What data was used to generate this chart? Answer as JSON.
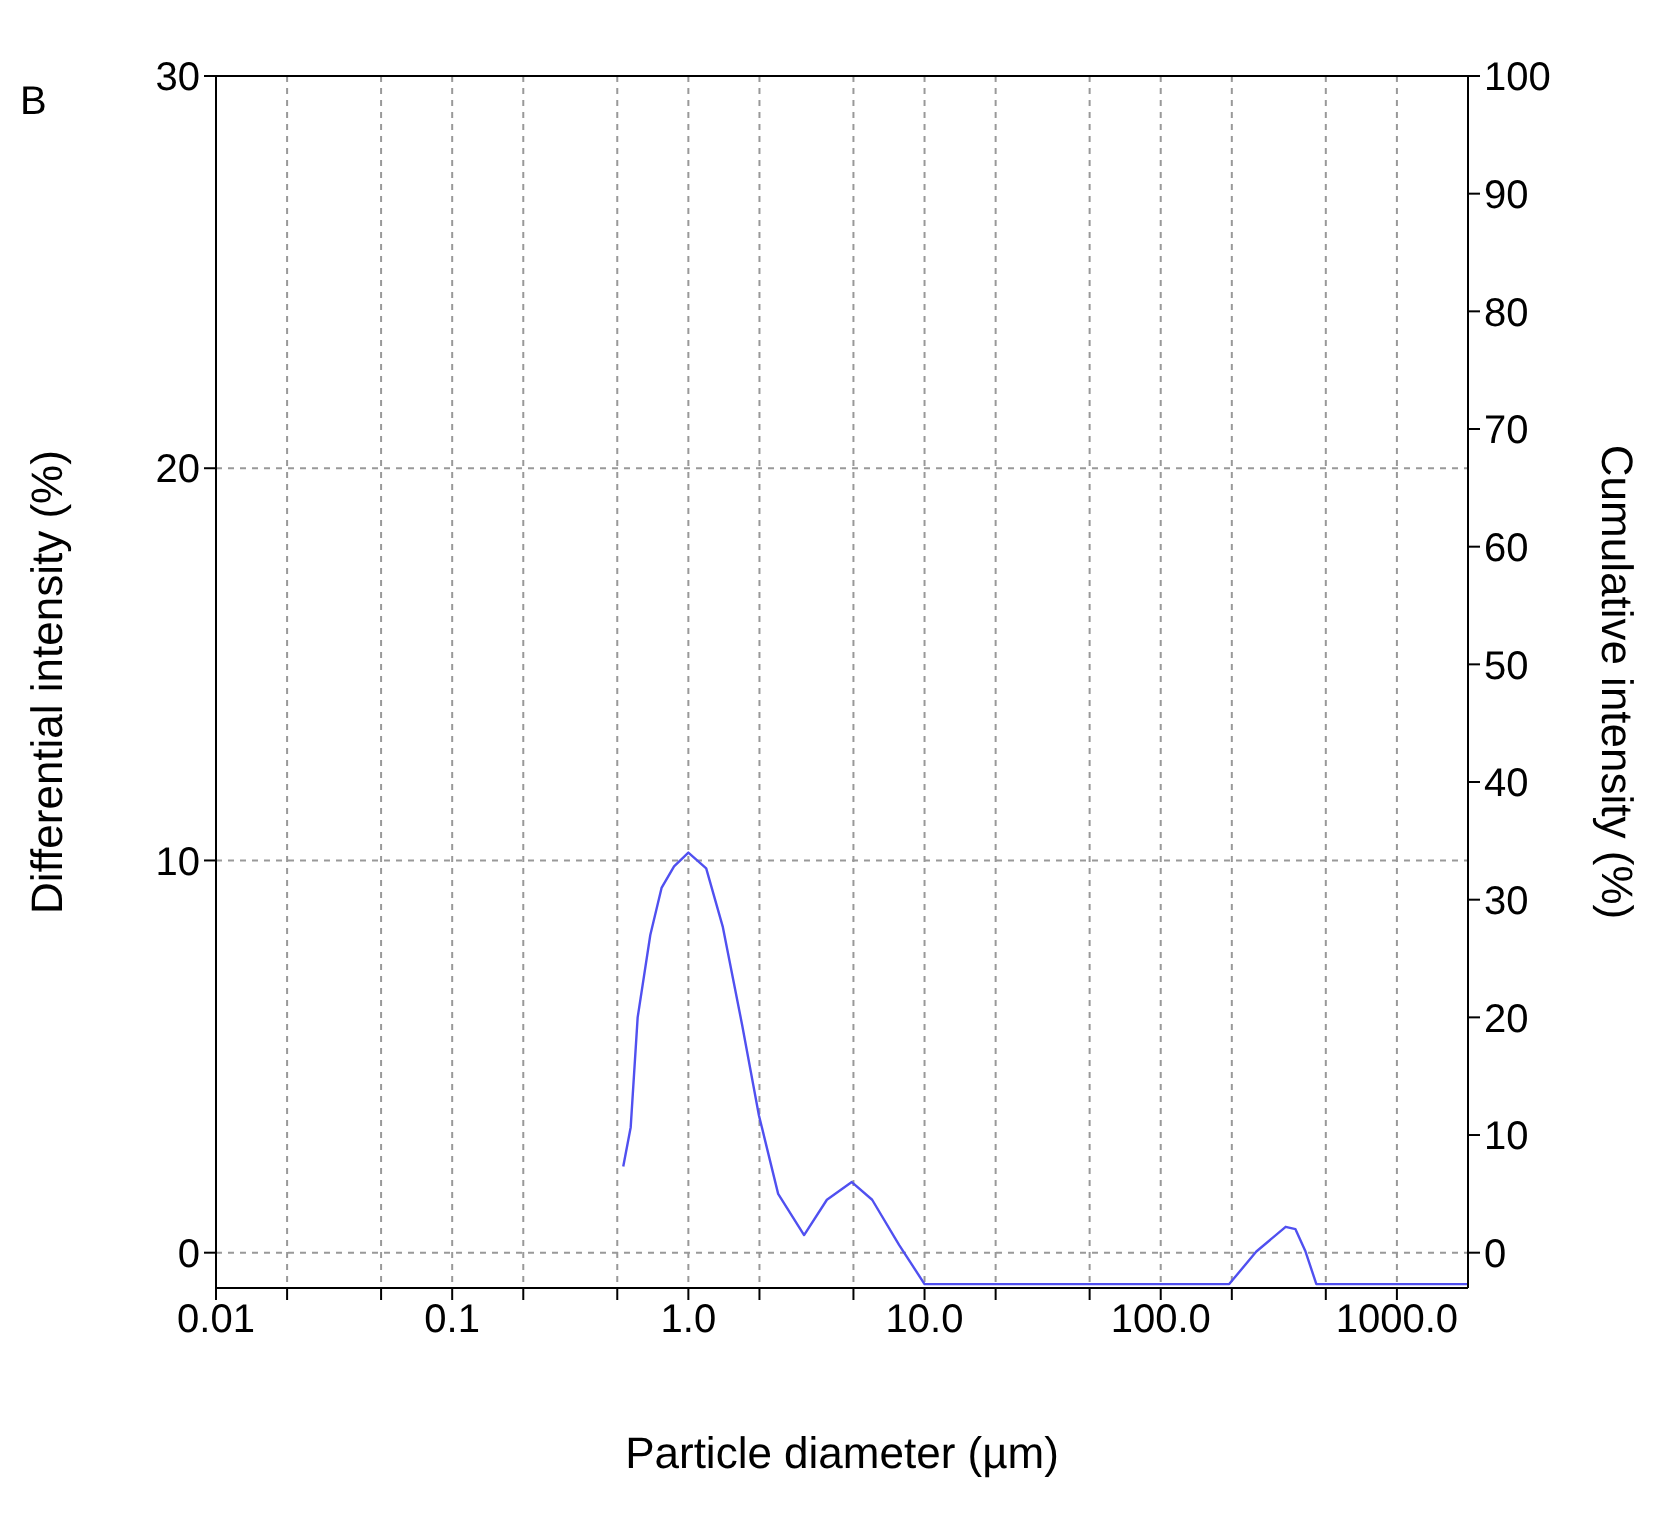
{
  "chart_data": {
    "type": "line",
    "title": "B",
    "xlabel": "Particle diameter (µm)",
    "ylabel": "Differential intensity (%)",
    "y2label": "Cumulative intensity (%)",
    "log": "x",
    "grid": true,
    "marker": "none",
    "line_style": "solid",
    "xlim": [
      0.01,
      2000
    ],
    "ylim": [
      -0.9,
      30
    ],
    "y2lim": [
      -3,
      100
    ],
    "xticks": [
      {
        "value": 0.01,
        "label": "0.01"
      },
      {
        "value": 0.02,
        "label": null
      },
      {
        "value": 0.05,
        "label": null
      },
      {
        "value": 0.1,
        "label": "0.1"
      },
      {
        "value": 0.2,
        "label": null
      },
      {
        "value": 0.5,
        "label": null
      },
      {
        "value": 1,
        "label": "1.0"
      },
      {
        "value": 2,
        "label": null
      },
      {
        "value": 5,
        "label": null
      },
      {
        "value": 10,
        "label": "10.0"
      },
      {
        "value": 20,
        "label": null
      },
      {
        "value": 50,
        "label": null
      },
      {
        "value": 100,
        "label": "100.0"
      },
      {
        "value": 200,
        "label": null
      },
      {
        "value": 500,
        "label": null
      },
      {
        "value": 1000,
        "label": "1000.0"
      }
    ],
    "yticks": [
      0,
      10,
      20,
      30
    ],
    "y2ticks": [
      0,
      10,
      20,
      30,
      40,
      50,
      60,
      70,
      80,
      90,
      100
    ],
    "series": [
      {
        "color": "#5050f0",
        "x": [
          0.53,
          0.57,
          0.61,
          0.69,
          0.77,
          0.87,
          1.0,
          1.19,
          1.4,
          1.69,
          1.99,
          2.4,
          3.09,
          3.86,
          4.92,
          6.0,
          7.8,
          10,
          11.4,
          195,
          254,
          338,
          372,
          409,
          456,
          2000
        ],
        "values": [
          2.2,
          3.2,
          6.0,
          8.1,
          9.3,
          9.85,
          10.2,
          9.8,
          8.3,
          5.8,
          3.5,
          1.5,
          0.45,
          1.35,
          1.8,
          1.35,
          0.2,
          -0.8,
          -0.8,
          -0.8,
          0.03,
          0.66,
          0.6,
          0.05,
          -0.8,
          -0.8
        ]
      }
    ]
  }
}
